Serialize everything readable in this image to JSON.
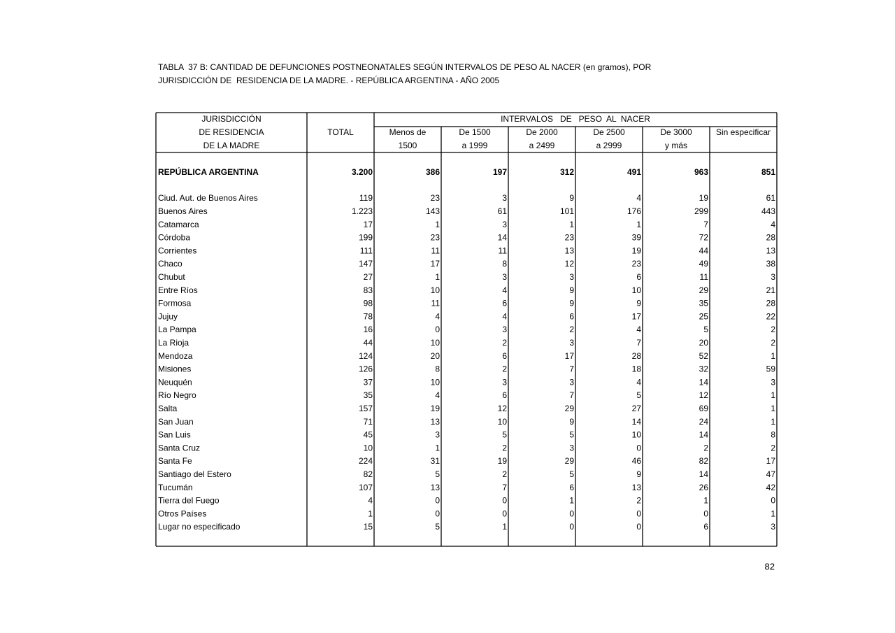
{
  "header": {
    "title": [
      "TABLA  37 B: CANTIDAD DE DEFUNCIONES POSTNEONATALES SEGÚN INTERVALOS DE PESO AL NACER (en gramos), POR",
      "JURISDICCIÓN DE  RESIDENCIA DE LA MADRE. - REPÚBLICA ARGENTINA - AÑO 2005"
    ]
  },
  "table": {
    "jurisdiction_header": [
      "JURISDICCIÓN",
      "DE RESIDENCIA",
      "DE LA MADRE"
    ],
    "total_header": "TOTAL",
    "group_header": "INTERVALOS   DE   PESO  AL  NACER",
    "columns": [
      [
        "Menos de",
        "1500"
      ],
      [
        "De 1500",
        "a 1999"
      ],
      [
        "De 2000",
        "a 2499"
      ],
      [
        "De 2500",
        "a 2999"
      ],
      [
        "De 3000",
        "y más"
      ],
      [
        "Sin especificar"
      ]
    ],
    "total_row": [
      "REPÚBLICA ARGENTINA",
      "3.200",
      "386",
      "197",
      "312",
      "491",
      "963",
      "851"
    ],
    "rows": [
      [
        "Ciud. Aut. de Buenos Aires",
        "119",
        "23",
        "3",
        "9",
        "4",
        "19",
        "61"
      ],
      [
        "Buenos Aires",
        "1.223",
        "143",
        "61",
        "101",
        "176",
        "299",
        "443"
      ],
      [
        "Catamarca",
        "17",
        "1",
        "3",
        "1",
        "1",
        "7",
        "4"
      ],
      [
        "Córdoba",
        "199",
        "23",
        "14",
        "23",
        "39",
        "72",
        "28"
      ],
      [
        "Corrientes",
        "111",
        "11",
        "11",
        "13",
        "19",
        "44",
        "13"
      ],
      [
        "Chaco",
        "147",
        "17",
        "8",
        "12",
        "23",
        "49",
        "38"
      ],
      [
        "Chubut",
        "27",
        "1",
        "3",
        "3",
        "6",
        "11",
        "3"
      ],
      [
        "Entre Ríos",
        "83",
        "10",
        "4",
        "9",
        "10",
        "29",
        "21"
      ],
      [
        "Formosa",
        "98",
        "11",
        "6",
        "9",
        "9",
        "35",
        "28"
      ],
      [
        "Jujuy",
        "78",
        "4",
        "4",
        "6",
        "17",
        "25",
        "22"
      ],
      [
        "La Pampa",
        "16",
        "0",
        "3",
        "2",
        "4",
        "5",
        "2"
      ],
      [
        "La Rioja",
        "44",
        "10",
        "2",
        "3",
        "7",
        "20",
        "2"
      ],
      [
        "Mendoza",
        "124",
        "20",
        "6",
        "17",
        "28",
        "52",
        "1"
      ],
      [
        "Misiones",
        "126",
        "8",
        "2",
        "7",
        "18",
        "32",
        "59"
      ],
      [
        "Neuquén",
        "37",
        "10",
        "3",
        "3",
        "4",
        "14",
        "3"
      ],
      [
        "Río Negro",
        "35",
        "4",
        "6",
        "7",
        "5",
        "12",
        "1"
      ],
      [
        "Salta",
        "157",
        "19",
        "12",
        "29",
        "27",
        "69",
        "1"
      ],
      [
        "San Juan",
        "71",
        "13",
        "10",
        "9",
        "14",
        "24",
        "1"
      ],
      [
        "San Luis",
        "45",
        "3",
        "5",
        "5",
        "10",
        "14",
        "8"
      ],
      [
        "Santa Cruz",
        "10",
        "1",
        "2",
        "3",
        "0",
        "2",
        "2"
      ],
      [
        "Santa Fe",
        "224",
        "31",
        "19",
        "29",
        "46",
        "82",
        "17"
      ],
      [
        "Santiago del Estero",
        "82",
        "5",
        "2",
        "5",
        "9",
        "14",
        "47"
      ],
      [
        "Tucumán",
        "107",
        "13",
        "7",
        "6",
        "13",
        "26",
        "42"
      ],
      [
        "Tierra del Fuego",
        "4",
        "0",
        "0",
        "1",
        "2",
        "1",
        "0"
      ],
      [
        "Otros Países",
        "1",
        "0",
        "0",
        "0",
        "0",
        "0",
        "1"
      ],
      [
        "Lugar no especificado",
        "15",
        "5",
        "1",
        "0",
        "0",
        "6",
        "3"
      ]
    ]
  },
  "page_number": "82"
}
